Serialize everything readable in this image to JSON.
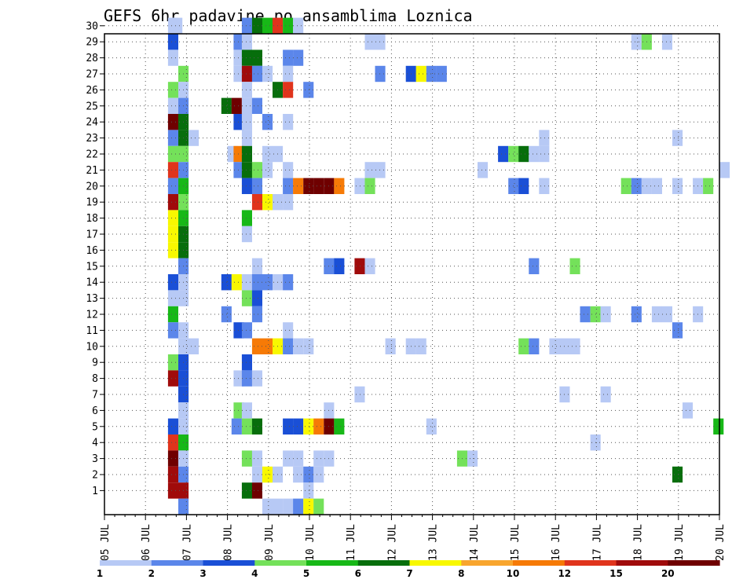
{
  "chart_data": {
    "type": "heatmap",
    "title": "GEFS 6hr padavine po ansamblima Loznica",
    "y_categories": [
      "1",
      "2",
      "3",
      "4",
      "5",
      "6",
      "7",
      "8",
      "9",
      "10",
      "11",
      "12",
      "13",
      "14",
      "15",
      "16",
      "17",
      "18",
      "19",
      "20",
      "21",
      "22",
      "23",
      "24",
      "25",
      "26",
      "27",
      "28",
      "29",
      "30"
    ],
    "x_tick_labels": [
      "05 JUL",
      "06 JUL",
      "07 JUL",
      "08 JUL",
      "09 JUL",
      "10 JUL",
      "11 JUL",
      "12 JUL",
      "13 JUL",
      "14 JUL",
      "15 JUL",
      "16 JUL",
      "17 JUL",
      "18 JUL",
      "19 JUL",
      "20 JUL"
    ],
    "x_range_days": [
      0,
      15
    ],
    "y_range": [
      0,
      30
    ],
    "grid": true,
    "color_scale": {
      "labels": [
        "1",
        "2",
        "3",
        "4",
        "5",
        "6",
        "7",
        "8",
        "10",
        "12",
        "15",
        "20"
      ],
      "colors": [
        "#b7c9f5",
        "#5b86ea",
        "#1a4fd6",
        "#74e15a",
        "#17b817",
        "#076e0c",
        "#f8f800",
        "#f8a52e",
        "#f67a06",
        "#e0341c",
        "#a00b0b",
        "#6f0000"
      ]
    },
    "cells": [
      {
        "m": 30,
        "t": 1.55,
        "v": 1
      },
      {
        "m": 30,
        "t": 1.65,
        "v": 1
      },
      {
        "m": 30,
        "t": 3.35,
        "v": 2
      },
      {
        "m": 30,
        "t": 3.6,
        "v": 6
      },
      {
        "m": 30,
        "t": 3.85,
        "v": 5
      },
      {
        "m": 30,
        "t": 4.1,
        "v": 12
      },
      {
        "m": 30,
        "t": 4.35,
        "v": 5
      },
      {
        "m": 30,
        "t": 4.6,
        "v": 1
      },
      {
        "m": 29,
        "t": 1.55,
        "v": 3
      },
      {
        "m": 29,
        "t": 3.15,
        "v": 2
      },
      {
        "m": 29,
        "t": 3.35,
        "v": 1
      },
      {
        "m": 29,
        "t": 6.35,
        "v": 1
      },
      {
        "m": 29,
        "t": 6.6,
        "v": 1
      },
      {
        "m": 29,
        "t": 12.85,
        "v": 1
      },
      {
        "m": 29,
        "t": 13.1,
        "v": 4
      },
      {
        "m": 29,
        "t": 13.6,
        "v": 1
      },
      {
        "m": 28,
        "t": 1.55,
        "v": 1
      },
      {
        "m": 28,
        "t": 3.15,
        "v": 1
      },
      {
        "m": 28,
        "t": 3.35,
        "v": 6
      },
      {
        "m": 28,
        "t": 3.6,
        "v": 6
      },
      {
        "m": 28,
        "t": 4.35,
        "v": 2
      },
      {
        "m": 28,
        "t": 4.6,
        "v": 2
      },
      {
        "m": 27,
        "t": 1.8,
        "v": 4
      },
      {
        "m": 27,
        "t": 3.15,
        "v": 1
      },
      {
        "m": 27,
        "t": 3.35,
        "v": 15
      },
      {
        "m": 27,
        "t": 3.6,
        "v": 2
      },
      {
        "m": 27,
        "t": 3.85,
        "v": 1
      },
      {
        "m": 27,
        "t": 4.35,
        "v": 1
      },
      {
        "m": 27,
        "t": 6.6,
        "v": 2
      },
      {
        "m": 27,
        "t": 7.35,
        "v": 3
      },
      {
        "m": 27,
        "t": 7.6,
        "v": 7
      },
      {
        "m": 27,
        "t": 7.85,
        "v": 2
      },
      {
        "m": 27,
        "t": 8.1,
        "v": 2
      },
      {
        "m": 26,
        "t": 1.55,
        "v": 4
      },
      {
        "m": 26,
        "t": 1.8,
        "v": 1
      },
      {
        "m": 26,
        "t": 3.35,
        "v": 1
      },
      {
        "m": 26,
        "t": 4.1,
        "v": 6
      },
      {
        "m": 26,
        "t": 4.35,
        "v": 12
      },
      {
        "m": 26,
        "t": 4.85,
        "v": 2
      },
      {
        "m": 25,
        "t": 1.8,
        "v": 2
      },
      {
        "m": 25,
        "t": 1.55,
        "v": 1
      },
      {
        "m": 25,
        "t": 2.85,
        "v": 6
      },
      {
        "m": 25,
        "t": 3.1,
        "v": 20
      },
      {
        "m": 25,
        "t": 3.35,
        "v": 1
      },
      {
        "m": 25,
        "t": 3.6,
        "v": 1
      },
      {
        "m": 25,
        "t": 3.6,
        "v": 2
      },
      {
        "m": 24,
        "t": 1.55,
        "v": 20
      },
      {
        "m": 24,
        "t": 1.8,
        "v": 6
      },
      {
        "m": 24,
        "t": 3.15,
        "v": 3
      },
      {
        "m": 24,
        "t": 3.35,
        "v": 1
      },
      {
        "m": 24,
        "t": 3.85,
        "v": 2
      },
      {
        "m": 24,
        "t": 4.35,
        "v": 1
      },
      {
        "m": 23,
        "t": 1.55,
        "v": 2
      },
      {
        "m": 23,
        "t": 1.8,
        "v": 6
      },
      {
        "m": 23,
        "t": 2.05,
        "v": 1
      },
      {
        "m": 23,
        "t": 3.35,
        "v": 1
      },
      {
        "m": 23,
        "t": 10.6,
        "v": 1
      },
      {
        "m": 23,
        "t": 13.85,
        "v": 1
      },
      {
        "m": 22,
        "t": 1.55,
        "v": 4
      },
      {
        "m": 22,
        "t": 1.8,
        "v": 4
      },
      {
        "m": 22,
        "t": 3.0,
        "v": 1
      },
      {
        "m": 22,
        "t": 3.15,
        "v": 10
      },
      {
        "m": 22,
        "t": 3.35,
        "v": 6
      },
      {
        "m": 22,
        "t": 3.85,
        "v": 1
      },
      {
        "m": 22,
        "t": 4.1,
        "v": 1
      },
      {
        "m": 22,
        "t": 9.6,
        "v": 3
      },
      {
        "m": 22,
        "t": 9.85,
        "v": 4
      },
      {
        "m": 22,
        "t": 10.1,
        "v": 6
      },
      {
        "m": 22,
        "t": 10.35,
        "v": 1
      },
      {
        "m": 22,
        "t": 10.6,
        "v": 1
      },
      {
        "m": 21,
        "t": 1.55,
        "v": 12
      },
      {
        "m": 21,
        "t": 1.8,
        "v": 2
      },
      {
        "m": 21,
        "t": 3.15,
        "v": 2
      },
      {
        "m": 21,
        "t": 3.35,
        "v": 6
      },
      {
        "m": 21,
        "t": 3.6,
        "v": 4
      },
      {
        "m": 21,
        "t": 3.85,
        "v": 1
      },
      {
        "m": 21,
        "t": 4.35,
        "v": 1
      },
      {
        "m": 21,
        "t": 6.35,
        "v": 1
      },
      {
        "m": 21,
        "t": 6.6,
        "v": 1
      },
      {
        "m": 21,
        "t": 9.1,
        "v": 1
      },
      {
        "m": 21,
        "t": 15.0,
        "v": 1
      },
      {
        "m": 20,
        "t": 1.55,
        "v": 2
      },
      {
        "m": 20,
        "t": 1.8,
        "v": 5
      },
      {
        "m": 20,
        "t": 3.35,
        "v": 3
      },
      {
        "m": 20,
        "t": 3.6,
        "v": 2
      },
      {
        "m": 20,
        "t": 4.35,
        "v": 2
      },
      {
        "m": 20,
        "t": 4.6,
        "v": 10
      },
      {
        "m": 20,
        "t": 4.85,
        "v": 20
      },
      {
        "m": 20,
        "t": 5.1,
        "v": 20
      },
      {
        "m": 20,
        "t": 5.35,
        "v": 20
      },
      {
        "m": 20,
        "t": 5.6,
        "v": 10
      },
      {
        "m": 20,
        "t": 6.1,
        "v": 1
      },
      {
        "m": 20,
        "t": 6.35,
        "v": 4
      },
      {
        "m": 20,
        "t": 9.85,
        "v": 2
      },
      {
        "m": 20,
        "t": 10.1,
        "v": 3
      },
      {
        "m": 20,
        "t": 10.6,
        "v": 1
      },
      {
        "m": 20,
        "t": 12.6,
        "v": 4
      },
      {
        "m": 20,
        "t": 12.85,
        "v": 2
      },
      {
        "m": 20,
        "t": 13.1,
        "v": 1
      },
      {
        "m": 20,
        "t": 13.35,
        "v": 1
      },
      {
        "m": 20,
        "t": 13.85,
        "v": 1
      },
      {
        "m": 20,
        "t": 14.35,
        "v": 1
      },
      {
        "m": 20,
        "t": 14.6,
        "v": 4
      },
      {
        "m": 19,
        "t": 1.55,
        "v": 15
      },
      {
        "m": 19,
        "t": 1.8,
        "v": 4
      },
      {
        "m": 19,
        "t": 3.6,
        "v": 12
      },
      {
        "m": 19,
        "t": 3.85,
        "v": 7
      },
      {
        "m": 19,
        "t": 4.1,
        "v": 1
      },
      {
        "m": 19,
        "t": 4.35,
        "v": 1
      },
      {
        "m": 18,
        "t": 1.55,
        "v": 7
      },
      {
        "m": 18,
        "t": 1.8,
        "v": 5
      },
      {
        "m": 18,
        "t": 3.35,
        "v": 5
      },
      {
        "m": 17,
        "t": 1.55,
        "v": 7
      },
      {
        "m": 17,
        "t": 1.8,
        "v": 6
      },
      {
        "m": 17,
        "t": 3.35,
        "v": 1
      },
      {
        "m": 16,
        "t": 1.55,
        "v": 7
      },
      {
        "m": 16,
        "t": 1.8,
        "v": 6
      },
      {
        "m": 15,
        "t": 1.8,
        "v": 2
      },
      {
        "m": 15,
        "t": 3.6,
        "v": 1
      },
      {
        "m": 15,
        "t": 5.35,
        "v": 2
      },
      {
        "m": 15,
        "t": 5.6,
        "v": 3
      },
      {
        "m": 15,
        "t": 6.1,
        "v": 15
      },
      {
        "m": 15,
        "t": 6.35,
        "v": 1
      },
      {
        "m": 15,
        "t": 10.35,
        "v": 2
      },
      {
        "m": 15,
        "t": 11.35,
        "v": 4
      },
      {
        "m": 14,
        "t": 1.55,
        "v": 3
      },
      {
        "m": 14,
        "t": 1.8,
        "v": 1
      },
      {
        "m": 14,
        "t": 2.85,
        "v": 3
      },
      {
        "m": 14,
        "t": 3.1,
        "v": 7
      },
      {
        "m": 14,
        "t": 3.35,
        "v": 1
      },
      {
        "m": 14,
        "t": 3.6,
        "v": 2
      },
      {
        "m": 14,
        "t": 3.85,
        "v": 2
      },
      {
        "m": 14,
        "t": 4.1,
        "v": 1
      },
      {
        "m": 14,
        "t": 4.35,
        "v": 2
      },
      {
        "m": 13,
        "t": 1.55,
        "v": 1
      },
      {
        "m": 13,
        "t": 1.8,
        "v": 1
      },
      {
        "m": 13,
        "t": 3.35,
        "v": 4
      },
      {
        "m": 13,
        "t": 3.6,
        "v": 3
      },
      {
        "m": 12,
        "t": 1.55,
        "v": 5
      },
      {
        "m": 12,
        "t": 2.85,
        "v": 2
      },
      {
        "m": 12,
        "t": 3.6,
        "v": 2
      },
      {
        "m": 12,
        "t": 11.6,
        "v": 2
      },
      {
        "m": 12,
        "t": 11.85,
        "v": 4
      },
      {
        "m": 12,
        "t": 12.1,
        "v": 1
      },
      {
        "m": 12,
        "t": 12.85,
        "v": 2
      },
      {
        "m": 12,
        "t": 13.35,
        "v": 1
      },
      {
        "m": 12,
        "t": 13.6,
        "v": 1
      },
      {
        "m": 12,
        "t": 14.35,
        "v": 1
      },
      {
        "m": 11,
        "t": 1.55,
        "v": 2
      },
      {
        "m": 11,
        "t": 1.8,
        "v": 1
      },
      {
        "m": 11,
        "t": 3.15,
        "v": 3
      },
      {
        "m": 11,
        "t": 3.35,
        "v": 2
      },
      {
        "m": 11,
        "t": 4.35,
        "v": 1
      },
      {
        "m": 11,
        "t": 13.85,
        "v": 2
      },
      {
        "m": 10,
        "t": 1.8,
        "v": 1
      },
      {
        "m": 10,
        "t": 2.05,
        "v": 1
      },
      {
        "m": 10,
        "t": 3.6,
        "v": 10
      },
      {
        "m": 10,
        "t": 3.85,
        "v": 10
      },
      {
        "m": 10,
        "t": 4.1,
        "v": 7
      },
      {
        "m": 10,
        "t": 4.35,
        "v": 2
      },
      {
        "m": 10,
        "t": 4.6,
        "v": 1
      },
      {
        "m": 10,
        "t": 4.85,
        "v": 1
      },
      {
        "m": 10,
        "t": 6.85,
        "v": 1
      },
      {
        "m": 10,
        "t": 7.35,
        "v": 1
      },
      {
        "m": 10,
        "t": 7.6,
        "v": 1
      },
      {
        "m": 10,
        "t": 10.1,
        "v": 4
      },
      {
        "m": 10,
        "t": 10.35,
        "v": 2
      },
      {
        "m": 10,
        "t": 10.85,
        "v": 1
      },
      {
        "m": 10,
        "t": 11.1,
        "v": 1
      },
      {
        "m": 10,
        "t": 11.35,
        "v": 1
      },
      {
        "m": 9,
        "t": 1.55,
        "v": 4
      },
      {
        "m": 9,
        "t": 1.8,
        "v": 3
      },
      {
        "m": 9,
        "t": 3.35,
        "v": 3
      },
      {
        "m": 8,
        "t": 1.55,
        "v": 15
      },
      {
        "m": 8,
        "t": 1.8,
        "v": 3
      },
      {
        "m": 8,
        "t": 3.15,
        "v": 1
      },
      {
        "m": 8,
        "t": 3.35,
        "v": 2
      },
      {
        "m": 8,
        "t": 3.6,
        "v": 1
      },
      {
        "m": 7,
        "t": 1.8,
        "v": 3
      },
      {
        "m": 7,
        "t": 6.1,
        "v": 1
      },
      {
        "m": 7,
        "t": 11.1,
        "v": 1
      },
      {
        "m": 7,
        "t": 12.1,
        "v": 1
      },
      {
        "m": 6,
        "t": 1.8,
        "v": 1
      },
      {
        "m": 6,
        "t": 3.15,
        "v": 4
      },
      {
        "m": 6,
        "t": 3.35,
        "v": 1
      },
      {
        "m": 6,
        "t": 5.35,
        "v": 1
      },
      {
        "m": 6,
        "t": 14.1,
        "v": 1
      },
      {
        "m": 5,
        "t": 1.55,
        "v": 3
      },
      {
        "m": 5,
        "t": 1.8,
        "v": 1
      },
      {
        "m": 5,
        "t": 3.1,
        "v": 2
      },
      {
        "m": 5,
        "t": 3.35,
        "v": 4
      },
      {
        "m": 5,
        "t": 3.6,
        "v": 6
      },
      {
        "m": 5,
        "t": 4.35,
        "v": 3
      },
      {
        "m": 5,
        "t": 4.6,
        "v": 3
      },
      {
        "m": 5,
        "t": 4.85,
        "v": 7
      },
      {
        "m": 5,
        "t": 5.1,
        "v": 10
      },
      {
        "m": 5,
        "t": 5.35,
        "v": 20
      },
      {
        "m": 5,
        "t": 5.6,
        "v": 5
      },
      {
        "m": 5,
        "t": 7.85,
        "v": 1
      },
      {
        "m": 5,
        "t": 14.85,
        "v": 5
      },
      {
        "m": 4,
        "t": 1.55,
        "v": 12
      },
      {
        "m": 4,
        "t": 1.8,
        "v": 5
      },
      {
        "m": 4,
        "t": 11.85,
        "v": 1
      },
      {
        "m": 3,
        "t": 1.55,
        "v": 20
      },
      {
        "m": 3,
        "t": 1.8,
        "v": 1
      },
      {
        "m": 3,
        "t": 3.35,
        "v": 4
      },
      {
        "m": 3,
        "t": 3.6,
        "v": 1
      },
      {
        "m": 3,
        "t": 4.35,
        "v": 1
      },
      {
        "m": 3,
        "t": 4.6,
        "v": 1
      },
      {
        "m": 3,
        "t": 5.1,
        "v": 1
      },
      {
        "m": 3,
        "t": 5.35,
        "v": 1
      },
      {
        "m": 3,
        "t": 8.6,
        "v": 4
      },
      {
        "m": 3,
        "t": 8.85,
        "v": 1
      },
      {
        "m": 2,
        "t": 1.55,
        "v": 15
      },
      {
        "m": 2,
        "t": 1.8,
        "v": 2
      },
      {
        "m": 2,
        "t": 3.6,
        "v": 1
      },
      {
        "m": 2,
        "t": 3.85,
        "v": 7
      },
      {
        "m": 2,
        "t": 4.1,
        "v": 1
      },
      {
        "m": 2,
        "t": 4.6,
        "v": 1
      },
      {
        "m": 2,
        "t": 4.85,
        "v": 2
      },
      {
        "m": 2,
        "t": 5.1,
        "v": 1
      },
      {
        "m": 2,
        "t": 13.85,
        "v": 6
      },
      {
        "m": 1,
        "t": 1.55,
        "v": 15
      },
      {
        "m": 1,
        "t": 1.8,
        "v": 15
      },
      {
        "m": 1,
        "t": 3.35,
        "v": 6
      },
      {
        "m": 1,
        "t": 3.6,
        "v": 20
      },
      {
        "m": 1,
        "t": 4.85,
        "v": 1
      },
      {
        "m": 0,
        "t": 1.8,
        "v": 2
      },
      {
        "m": 0,
        "t": 3.85,
        "v": 1
      },
      {
        "m": 0,
        "t": 4.1,
        "v": 1
      },
      {
        "m": 0,
        "t": 4.35,
        "v": 1
      },
      {
        "m": 0,
        "t": 4.6,
        "v": 2
      },
      {
        "m": 0,
        "t": 4.85,
        "v": 7
      },
      {
        "m": 0,
        "t": 5.1,
        "v": 4
      }
    ]
  }
}
